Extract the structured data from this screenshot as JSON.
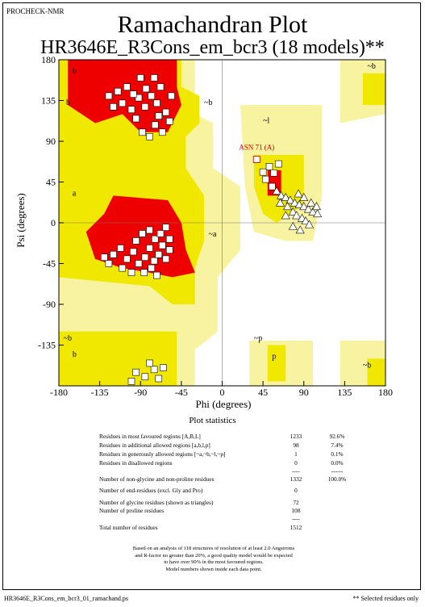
{
  "header": {
    "program": "PROCHECK-NMR",
    "title": "Ramachandran Plot",
    "subtitle": "HR3646E_R3Cons_em_bcr3 (18 models)**"
  },
  "chart_data": {
    "type": "scatter",
    "xlabel": "Phi (degrees)",
    "ylabel": "Psi (degrees)",
    "xlim": [
      -180,
      180
    ],
    "ylim": [
      -180,
      180
    ],
    "x_ticks": [
      "-180",
      "-135",
      "-90",
      "-45",
      "0",
      "45",
      "90",
      "135",
      "180"
    ],
    "y_ticks": [
      "180",
      "135",
      "90",
      "45",
      "0",
      "-45",
      "-90",
      "-135"
    ],
    "region_labels": [
      "b",
      "b",
      "~b",
      "~b",
      "~l",
      "a",
      "~a",
      "~b",
      "b",
      "~p",
      "p",
      "~b"
    ],
    "colors": {
      "most_favoured": "#ee0000",
      "additional": "#f0e800",
      "generous": "#f7f3a0",
      "disallowed": "#ffffff"
    },
    "highlight": {
      "label": "ASN 71 (A)",
      "phi": 38,
      "psi": 70
    },
    "series": [
      {
        "marker": "square",
        "points": [
          [
            -120,
            128
          ],
          [
            -110,
            132
          ],
          [
            -100,
            125
          ],
          [
            -92,
            138
          ],
          [
            -85,
            128
          ],
          [
            -78,
            140
          ],
          [
            -72,
            132
          ],
          [
            -68,
            150
          ],
          [
            -75,
            160
          ],
          [
            -90,
            160
          ],
          [
            -105,
            150
          ],
          [
            -115,
            145
          ],
          [
            -125,
            140
          ],
          [
            -95,
            115
          ],
          [
            -88,
            100
          ],
          [
            -80,
            95
          ],
          [
            -74,
            108
          ],
          [
            -70,
            118
          ],
          [
            -62,
            122
          ],
          [
            -58,
            112
          ],
          [
            -66,
            100
          ],
          [
            -56,
            140
          ],
          [
            -84,
            148
          ],
          [
            -98,
            142
          ],
          [
            -120,
            -35
          ],
          [
            -112,
            -28
          ],
          [
            -105,
            -40
          ],
          [
            -98,
            -32
          ],
          [
            -92,
            -45
          ],
          [
            -85,
            -38
          ],
          [
            -80,
            -28
          ],
          [
            -75,
            -42
          ],
          [
            -70,
            -35
          ],
          [
            -66,
            -25
          ],
          [
            -62,
            -40
          ],
          [
            -58,
            -30
          ],
          [
            -95,
            -20
          ],
          [
            -88,
            -12
          ],
          [
            -80,
            -8
          ],
          [
            -74,
            -18
          ],
          [
            -68,
            -12
          ],
          [
            -62,
            -5
          ],
          [
            -58,
            -18
          ],
          [
            -86,
            -55
          ],
          [
            -78,
            -50
          ],
          [
            -72,
            -58
          ],
          [
            -110,
            -50
          ],
          [
            -100,
            -55
          ],
          [
            -125,
            -45
          ],
          [
            -130,
            -38
          ],
          [
            52,
            62
          ],
          [
            57,
            55
          ],
          [
            48,
            48
          ],
          [
            55,
            40
          ],
          [
            62,
            65
          ],
          [
            45,
            56
          ],
          [
            38,
            70
          ],
          [
            -95,
            -165
          ],
          [
            -85,
            -170
          ],
          [
            -75,
            -162
          ],
          [
            -70,
            -172
          ],
          [
            -100,
            -175
          ],
          [
            -80,
            -155
          ],
          [
            -65,
            -160
          ]
        ]
      },
      {
        "marker": "triangle",
        "points": [
          [
            60,
            35
          ],
          [
            65,
            30
          ],
          [
            70,
            28
          ],
          [
            75,
            25
          ],
          [
            80,
            22
          ],
          [
            85,
            20
          ],
          [
            90,
            18
          ],
          [
            95,
            15
          ],
          [
            100,
            12
          ],
          [
            105,
            10
          ],
          [
            72,
            18
          ],
          [
            78,
            12
          ],
          [
            82,
            8
          ],
          [
            88,
            5
          ],
          [
            92,
            2
          ],
          [
            96,
            -2
          ],
          [
            86,
            -8
          ],
          [
            78,
            -4
          ],
          [
            70,
            8
          ],
          [
            64,
            22
          ],
          [
            98,
            22
          ],
          [
            104,
            18
          ],
          [
            90,
            28
          ],
          [
            84,
            32
          ]
        ]
      }
    ]
  },
  "stats": {
    "title": "Plot statistics",
    "rows": [
      {
        "label": "Residues in most favoured regions  [A,B,L]",
        "count": "1233",
        "pct": "92.6%"
      },
      {
        "label": "Residues in additional allowed regions  [a,b,l,p]",
        "count": "98",
        "pct": "7.4%"
      },
      {
        "label": "Residues in generously allowed regions  [~a,~b,~l,~p]",
        "count": "1",
        "pct": "0.1%"
      },
      {
        "label": "Residues in disallowed regions",
        "count": "0",
        "pct": "0.0%"
      },
      {
        "label": "Number of non-glycine and non-proline residues",
        "count": "1332",
        "pct": "100.0%"
      },
      {
        "label": "Number of end-residues (excl. Gly and Pro)",
        "count": "0",
        "pct": ""
      },
      {
        "label": "Number of glycine residues (shown as triangles)",
        "count": "72",
        "pct": ""
      },
      {
        "label": "Number of proline residues",
        "count": "108",
        "pct": ""
      },
      {
        "label": "Total number of residues",
        "count": "1512",
        "pct": ""
      }
    ],
    "dashes_a": "----",
    "dashes_b": "------",
    "dashes_c": "----"
  },
  "note": {
    "line1": "Based on an analysis of 118 structures of resolution of at least 2.0 Angstroms",
    "line2": "and R-factor no greater than 20%, a good quality model would be expected",
    "line3": "to have over 90% in the most favoured regions.",
    "line4": "Model numbers shown inside each data point."
  },
  "footer": {
    "left": "HR3646E_R3Cons_em_bcr3_01_ramachand.ps",
    "right": "** Selected residues only"
  }
}
